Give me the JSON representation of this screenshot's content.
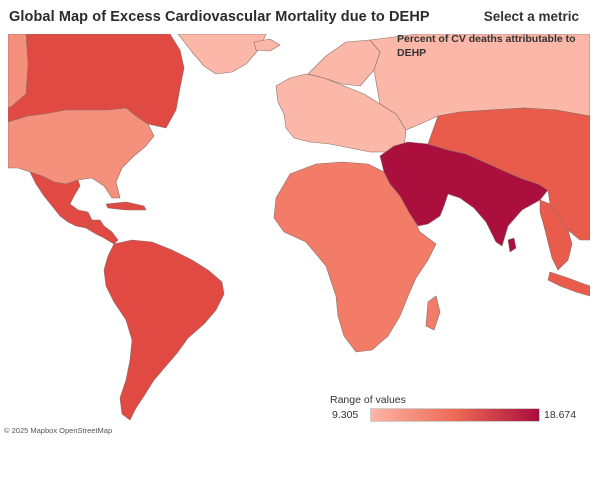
{
  "title": "Global Map of Excess Cardiovascular Mortality due to DEHP",
  "metric": {
    "heading": "Select a metric",
    "value": "Percent of CV deaths attributable to DEHP"
  },
  "legend": {
    "title": "Range of values",
    "min": "9.305",
    "max": "18.674",
    "min_color": "#fbb4a6",
    "mid_color": "#ee6a56",
    "max_color": "#a90d3c"
  },
  "attribution": {
    "copyright": "© 2025",
    "mapbox": "Mapbox",
    "osm": "OpenStreetMap"
  },
  "colors": {
    "lightest": "#fbb7a8",
    "light": "#f5907c",
    "mid_light": "#f27c68",
    "mid": "#ee6a56",
    "mid_dark": "#e95b4a",
    "dark": "#e04a42",
    "darkest": "#aa0f3d",
    "border": "#8a6f68",
    "ocean": "#ffffff"
  },
  "regions": [
    {
      "name": "region-greenland",
      "tone": "lightest"
    },
    {
      "name": "region-iceland",
      "tone": "lightest"
    },
    {
      "name": "region-canada",
      "tone": "dark"
    },
    {
      "name": "region-alaska",
      "tone": "light"
    },
    {
      "name": "region-united-states",
      "tone": "light"
    },
    {
      "name": "region-mexico",
      "tone": "dark"
    },
    {
      "name": "region-central-america",
      "tone": "dark"
    },
    {
      "name": "region-caribbean",
      "tone": "dark"
    },
    {
      "name": "region-south-america",
      "tone": "dark"
    },
    {
      "name": "region-europe",
      "tone": "lightest"
    },
    {
      "name": "region-scandinavia",
      "tone": "lightest"
    },
    {
      "name": "region-russia",
      "tone": "lightest"
    },
    {
      "name": "region-africa",
      "tone": "mid_light"
    },
    {
      "name": "region-madagascar",
      "tone": "mid_light"
    },
    {
      "name": "region-middle-east-south-asia",
      "tone": "darkest"
    },
    {
      "name": "region-sri-lanka",
      "tone": "darkest"
    },
    {
      "name": "region-central-east-asia",
      "tone": "mid_dark"
    },
    {
      "name": "region-southeast-asia",
      "tone": "mid_dark"
    },
    {
      "name": "region-indonesia",
      "tone": "mid_dark"
    }
  ]
}
